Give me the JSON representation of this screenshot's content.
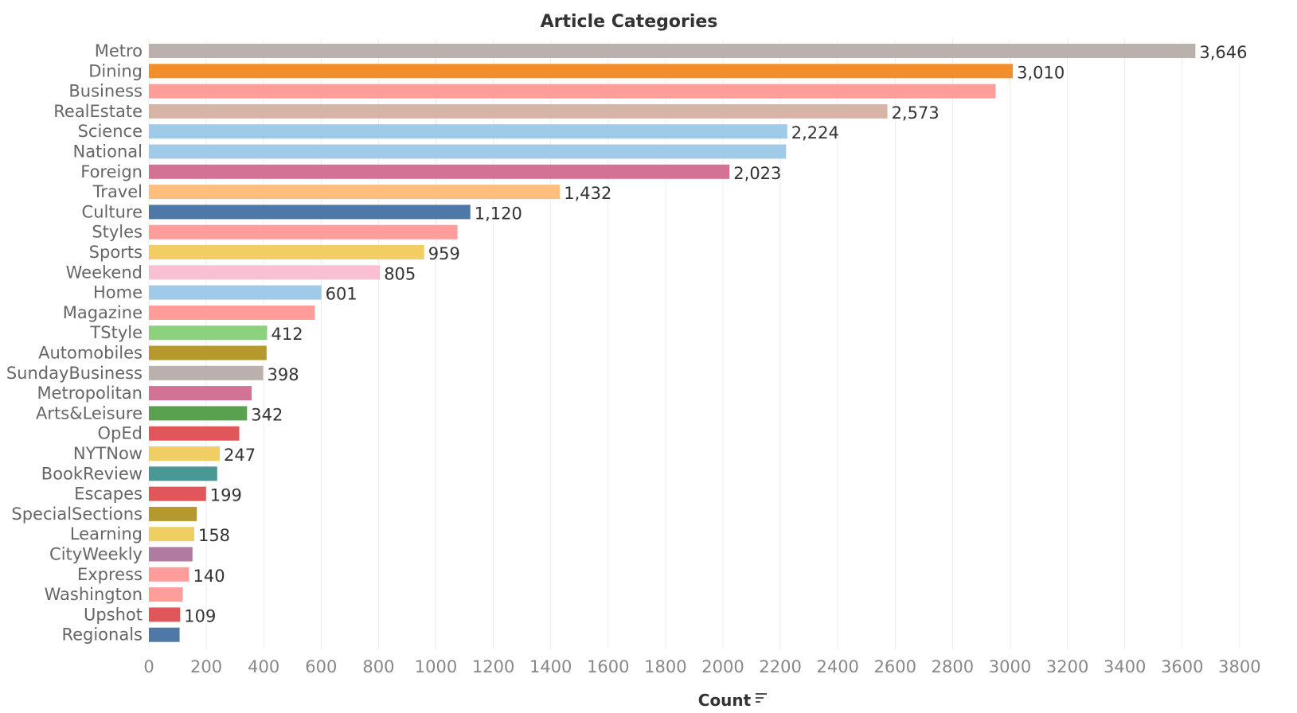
{
  "chart_data": {
    "type": "bar",
    "orientation": "horizontal",
    "title": "Article Categories",
    "xlabel": "Count",
    "ylabel": "",
    "xlim": [
      0,
      3960
    ],
    "xticks": [
      0,
      200,
      400,
      600,
      800,
      1000,
      1200,
      1400,
      1600,
      1800,
      2000,
      2200,
      2400,
      2600,
      2800,
      3000,
      3200,
      3400,
      3600,
      3800
    ],
    "grid": true,
    "sort_icon": "sort-descending-icon",
    "bars": [
      {
        "category": "Metro",
        "value": 3646,
        "label": "3,646",
        "color": "#BAB0AC"
      },
      {
        "category": "Dining",
        "value": 3010,
        "label": "3,010",
        "color": "#F28E2B"
      },
      {
        "category": "Business",
        "value": 2950,
        "label": "",
        "color": "#FF9D9A"
      },
      {
        "category": "RealEstate",
        "value": 2573,
        "label": "2,573",
        "color": "#D7B5A6"
      },
      {
        "category": "Science",
        "value": 2224,
        "label": "2,224",
        "color": "#A0CBE8"
      },
      {
        "category": "National",
        "value": 2220,
        "label": "",
        "color": "#A0CBE8"
      },
      {
        "category": "Foreign",
        "value": 2023,
        "label": "2,023",
        "color": "#D37295"
      },
      {
        "category": "Travel",
        "value": 1432,
        "label": "1,432",
        "color": "#FFBE7D"
      },
      {
        "category": "Culture",
        "value": 1120,
        "label": "1,120",
        "color": "#4E79A7"
      },
      {
        "category": "Styles",
        "value": 1075,
        "label": "",
        "color": "#FF9D9A"
      },
      {
        "category": "Sports",
        "value": 959,
        "label": "959",
        "color": "#F1CE63"
      },
      {
        "category": "Weekend",
        "value": 805,
        "label": "805",
        "color": "#FABFD2"
      },
      {
        "category": "Home",
        "value": 601,
        "label": "601",
        "color": "#A0CBE8"
      },
      {
        "category": "Magazine",
        "value": 578,
        "label": "",
        "color": "#FF9D9A"
      },
      {
        "category": "TStyle",
        "value": 412,
        "label": "412",
        "color": "#8CD17D"
      },
      {
        "category": "Automobiles",
        "value": 410,
        "label": "",
        "color": "#B6992D"
      },
      {
        "category": "SundayBusiness",
        "value": 398,
        "label": "398",
        "color": "#BAB0AC"
      },
      {
        "category": "Metropolitan",
        "value": 358,
        "label": "",
        "color": "#D37295"
      },
      {
        "category": "Arts&Leisure",
        "value": 342,
        "label": "342",
        "color": "#59A14F"
      },
      {
        "category": "OpEd",
        "value": 315,
        "label": "",
        "color": "#E15759"
      },
      {
        "category": "NYTNow",
        "value": 247,
        "label": "247",
        "color": "#F1CE63"
      },
      {
        "category": "BookReview",
        "value": 238,
        "label": "",
        "color": "#499894"
      },
      {
        "category": "Escapes",
        "value": 199,
        "label": "199",
        "color": "#E15759"
      },
      {
        "category": "SpecialSections",
        "value": 167,
        "label": "",
        "color": "#B6992D"
      },
      {
        "category": "Learning",
        "value": 158,
        "label": "158",
        "color": "#F1CE63"
      },
      {
        "category": "CityWeekly",
        "value": 152,
        "label": "",
        "color": "#B07AA1"
      },
      {
        "category": "Express",
        "value": 140,
        "label": "140",
        "color": "#FF9D9A"
      },
      {
        "category": "Washington",
        "value": 118,
        "label": "",
        "color": "#FF9D9A"
      },
      {
        "category": "Upshot",
        "value": 109,
        "label": "109",
        "color": "#E15759"
      },
      {
        "category": "Regionals",
        "value": 107,
        "label": "",
        "color": "#4E79A7"
      }
    ]
  }
}
